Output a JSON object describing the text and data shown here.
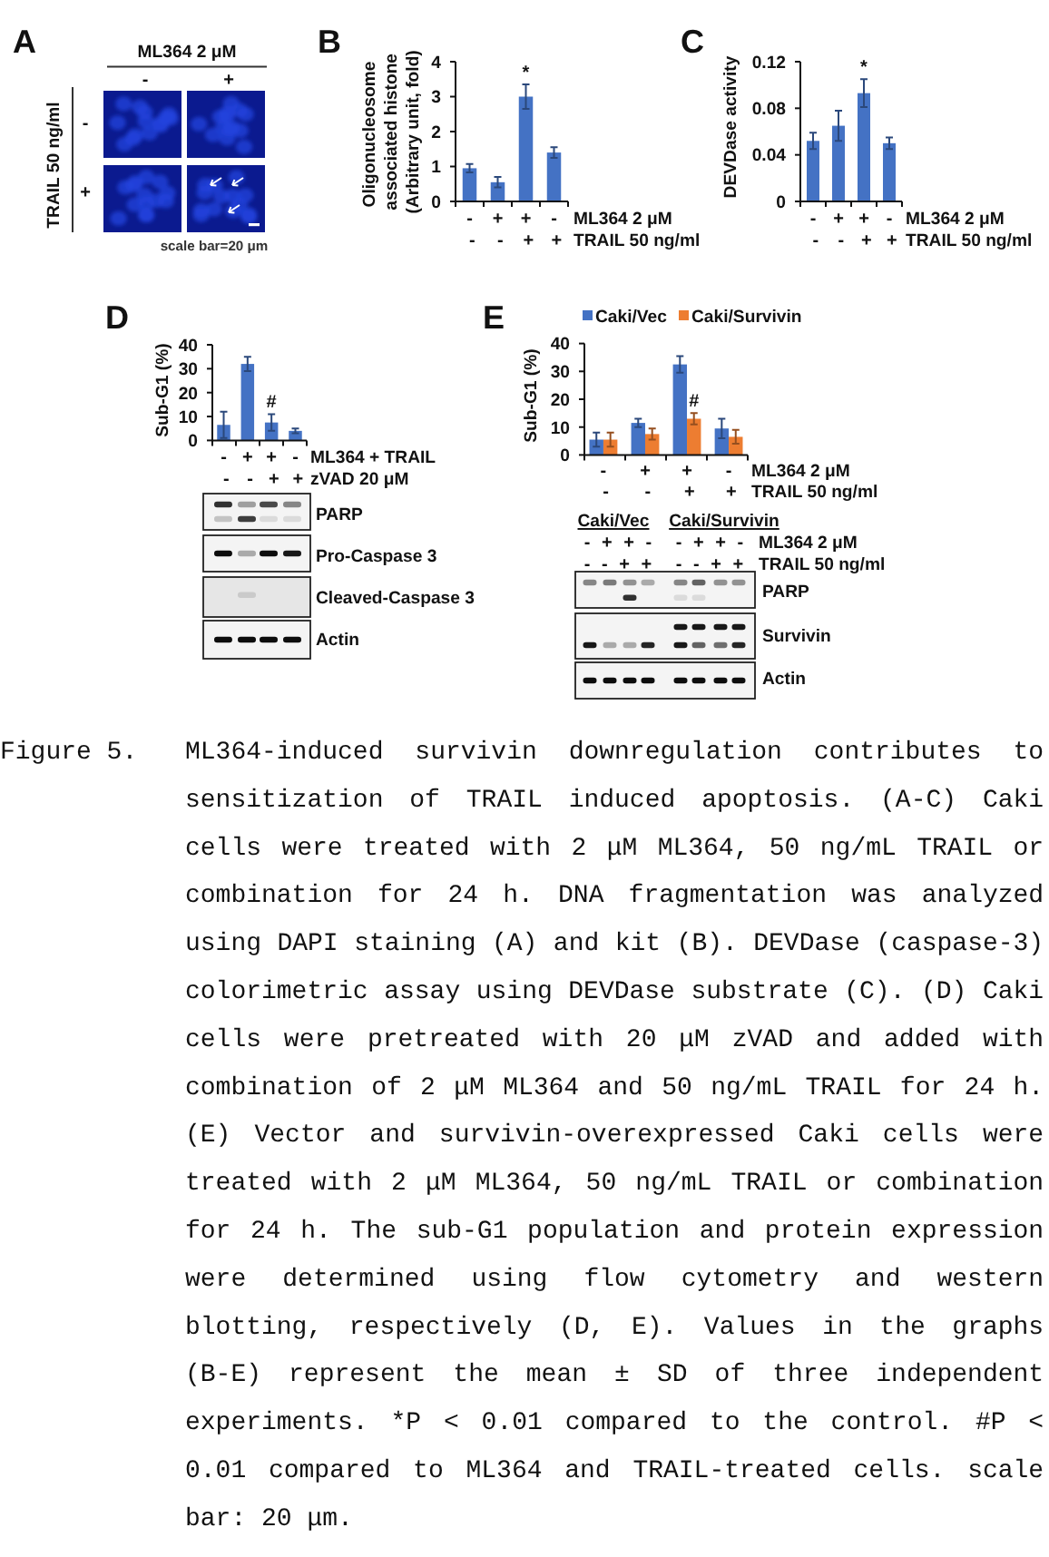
{
  "chart_data": [
    {
      "type": "other",
      "title": "A",
      "annotations": [
        "ML364 2 μM",
        "-",
        "+",
        "TRAIL 50 ng/ml",
        "-",
        "+",
        "scale bar=20 μm"
      ]
    },
    {
      "type": "bar",
      "title": "B",
      "ylabel": "Oligonucleosome\nassociated histone\n(Arbitrary unit, fold)",
      "categories": [
        "-\n-",
        "+\n-",
        "+\n+",
        "-\n+"
      ],
      "values": [
        0.95,
        0.55,
        3.0,
        1.4
      ],
      "errors": [
        0.12,
        0.15,
        0.35,
        0.15
      ],
      "color": "#4472c4",
      "ylim": [
        0,
        4
      ],
      "yticks": [
        0,
        1,
        2,
        3,
        4
      ],
      "annotations": [
        "ML364 2 μM",
        "TRAIL 50 ng/ml",
        "*"
      ]
    },
    {
      "type": "bar",
      "title": "C",
      "ylabel": "DEVDase activity",
      "categories": [
        "-\n-",
        "+\n-",
        "+\n+",
        "-\n+"
      ],
      "values": [
        0.052,
        0.065,
        0.093,
        0.05
      ],
      "errors": [
        0.007,
        0.013,
        0.012,
        0.005
      ],
      "color": "#4472c4",
      "ylim": [
        0,
        0.12
      ],
      "yticks": [
        0,
        0.04,
        0.08,
        0.12
      ],
      "annotations": [
        "ML364 2 μM",
        "TRAIL 50 ng/ml",
        "*"
      ]
    },
    {
      "type": "bar",
      "title": "D",
      "ylabel": "Sub-G1 (%)",
      "categories": [
        "-\n-",
        "+\n-",
        "+\n+",
        "-\n+"
      ],
      "values": [
        6.5,
        32,
        7.5,
        4
      ],
      "errors": [
        5.5,
        3,
        3.5,
        1
      ],
      "color": "#4472c4",
      "ylim": [
        0,
        40
      ],
      "yticks": [
        0,
        10,
        20,
        30,
        40
      ],
      "annotations": [
        "ML364 + TRAIL",
        "zVAD 20 μM",
        "PARP",
        "Pro-Caspase 3",
        "Cleaved-Caspase 3",
        "Actin",
        "#"
      ]
    },
    {
      "type": "bar",
      "title": "E",
      "ylabel": "Sub-G1 (%)",
      "categories": [
        "-\n-",
        "+\n-",
        "+\n+",
        "-\n+"
      ],
      "series": [
        {
          "name": "Caki/Vec",
          "color": "#4472c4",
          "values": [
            5.5,
            11.5,
            32.5,
            9.5
          ],
          "errors": [
            2.5,
            1.5,
            3,
            3.5
          ]
        },
        {
          "name": "Caki/Survivin",
          "color": "#ed7d31",
          "values": [
            5.5,
            7.5,
            13,
            6.5
          ],
          "errors": [
            2.5,
            2,
            2,
            2.5
          ]
        }
      ],
      "ylim": [
        0,
        40
      ],
      "yticks": [
        0,
        10,
        20,
        30,
        40
      ],
      "legend": "top",
      "annotations": [
        "ML364 2 μM",
        "TRAIL 50 ng/ml",
        "#",
        "Caki/Vec",
        "Caki/Survivin",
        "- + + -",
        "- - + +",
        "- + + -",
        "- - + +",
        "ML364 2 μM",
        "TRAIL 50 ng/ml",
        "PARP",
        "Survivin",
        "Actin"
      ]
    },
    {
      "type": "other",
      "annotations": [
        "Figure 5.",
        "ML364-induced survivin downregulation contributes to sensitization of TRAIL induced apoptosis. (A-C) Caki cells were treated with 2 μM ML364, 50 ng/mL TRAIL or combination for 24 h. DNA fragmentation was analyzed using DAPI staining (A) and kit (B). DEVDase (caspase-3) colorimetric assay using DEVDase substrate (C). (D) Caki cells were pretreated with 20 μM zVAD and added with combination of 2 μM ML364 and 50 ng/mL TRAIL for 24 h. (E) Vector and survivin-overexpressed Caki cells were treated with 2 μM ML364, 50 ng/mL TRAIL or combination for 24 h. The sub-G1 population and protein expression were determined using flow cytometry and western blotting, respectively (D, E). Values in the graphs (B-E) represent the mean ± SD of three independent experiments. *P < 0.01 compared to the control. #P < 0.01 compared to ML364 and TRAIL-treated cells. scale bar: 20 μm."
      ]
    }
  ]
}
